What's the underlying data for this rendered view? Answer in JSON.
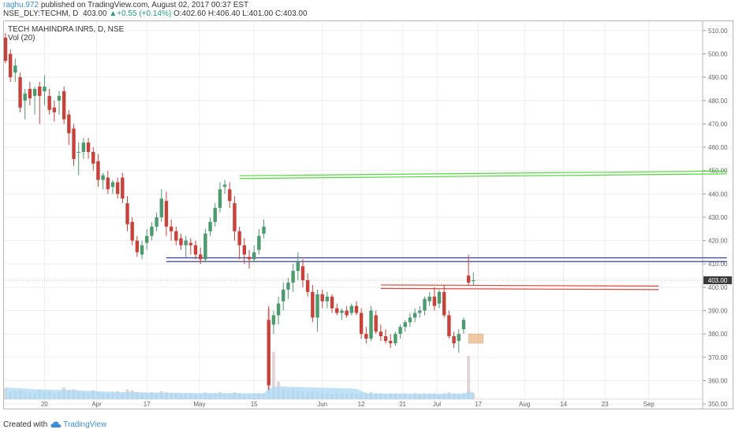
{
  "header": {
    "user": "raghu.972",
    "published": "published on TradingView.com, August 02, 2017 00:37 EST",
    "symbol": "NSE_DLY:TECHM, D",
    "price": "403.00",
    "change": "+0.55 (+0.14%)",
    "ohlc": "O:402.60 H:406.40 L:401.00 C:403.00"
  },
  "legend": {
    "title": "TECH MAHINDRA INR5, D, NSE",
    "vol": "Vol (20)"
  },
  "footer": {
    "created": "Created with",
    "brand": "TradingView",
    "logo_icon": "tradingview-cloud-icon"
  },
  "colors": {
    "up": "#4c9a6e",
    "down": "#c7423a",
    "green_line": "#4fdc3a",
    "blue_line": "#3440a0",
    "red_line": "#e04a3c",
    "volume_ma": "#a9d8f5",
    "volume_bar": "#d7c5c5",
    "last_price_bg": "#3b3b3b"
  },
  "chart_data": {
    "type": "candlestick",
    "ylim": [
      348,
      514
    ],
    "yticks": [
      "510.00",
      "500.00",
      "490.00",
      "480.00",
      "470.00",
      "460.00",
      "450.00",
      "440.00",
      "430.00",
      "420.00",
      "410.00",
      "400.00",
      "390.00",
      "380.00",
      "370.00",
      "360.00",
      "350.00"
    ],
    "xticks": [
      "20",
      "Apr",
      "17",
      "May",
      "15",
      "Jun",
      "12",
      "21",
      "Jul",
      "17",
      "Aug",
      "14",
      "23",
      "Sep"
    ],
    "last_price": "403.00",
    "candles": [
      {
        "o": 507,
        "h": 509,
        "l": 496,
        "c": 497
      },
      {
        "o": 500,
        "h": 502,
        "l": 488,
        "c": 490
      },
      {
        "o": 492,
        "h": 498,
        "l": 488,
        "c": 495
      },
      {
        "o": 490,
        "h": 492,
        "l": 475,
        "c": 477
      },
      {
        "o": 480,
        "h": 485,
        "l": 472,
        "c": 483
      },
      {
        "o": 485,
        "h": 488,
        "l": 478,
        "c": 481
      },
      {
        "o": 482,
        "h": 486,
        "l": 474,
        "c": 485
      },
      {
        "o": 486,
        "h": 488,
        "l": 470,
        "c": 482
      },
      {
        "o": 484,
        "h": 491,
        "l": 478,
        "c": 486
      },
      {
        "o": 482,
        "h": 485,
        "l": 474,
        "c": 476
      },
      {
        "o": 477,
        "h": 480,
        "l": 471,
        "c": 475
      },
      {
        "o": 480,
        "h": 484,
        "l": 474,
        "c": 482
      },
      {
        "o": 484,
        "h": 486,
        "l": 470,
        "c": 472
      },
      {
        "o": 474,
        "h": 476,
        "l": 461,
        "c": 466
      },
      {
        "o": 468,
        "h": 470,
        "l": 452,
        "c": 455
      },
      {
        "o": 458,
        "h": 462,
        "l": 448,
        "c": 458
      },
      {
        "o": 458,
        "h": 464,
        "l": 455,
        "c": 462
      },
      {
        "o": 462,
        "h": 464,
        "l": 455,
        "c": 458
      },
      {
        "o": 458,
        "h": 460,
        "l": 450,
        "c": 453
      },
      {
        "o": 454,
        "h": 457,
        "l": 443,
        "c": 446
      },
      {
        "o": 446,
        "h": 449,
        "l": 442,
        "c": 448
      },
      {
        "o": 447,
        "h": 450,
        "l": 440,
        "c": 442
      },
      {
        "o": 443,
        "h": 446,
        "l": 440,
        "c": 445
      },
      {
        "o": 445,
        "h": 447,
        "l": 438,
        "c": 440
      },
      {
        "o": 447,
        "h": 449,
        "l": 436,
        "c": 438
      },
      {
        "o": 436,
        "h": 439,
        "l": 424,
        "c": 427
      },
      {
        "o": 428,
        "h": 430,
        "l": 418,
        "c": 420
      },
      {
        "o": 420,
        "h": 422,
        "l": 413,
        "c": 415
      },
      {
        "o": 414,
        "h": 420,
        "l": 412,
        "c": 418
      },
      {
        "o": 419,
        "h": 425,
        "l": 416,
        "c": 422
      },
      {
        "o": 422,
        "h": 428,
        "l": 420,
        "c": 426
      },
      {
        "o": 426,
        "h": 432,
        "l": 424,
        "c": 430
      },
      {
        "o": 430,
        "h": 442,
        "l": 428,
        "c": 438
      },
      {
        "o": 437,
        "h": 441,
        "l": 422,
        "c": 426
      },
      {
        "o": 426,
        "h": 429,
        "l": 420,
        "c": 424
      },
      {
        "o": 424,
        "h": 426,
        "l": 418,
        "c": 420
      },
      {
        "o": 421,
        "h": 423,
        "l": 416,
        "c": 418
      },
      {
        "o": 418,
        "h": 422,
        "l": 413,
        "c": 420
      },
      {
        "o": 419,
        "h": 421,
        "l": 414,
        "c": 418
      },
      {
        "o": 418,
        "h": 420,
        "l": 412,
        "c": 414
      },
      {
        "o": 414,
        "h": 417,
        "l": 410,
        "c": 412
      },
      {
        "o": 412,
        "h": 425,
        "l": 411,
        "c": 423
      },
      {
        "o": 424,
        "h": 430,
        "l": 422,
        "c": 428
      },
      {
        "o": 428,
        "h": 436,
        "l": 426,
        "c": 434
      },
      {
        "o": 434,
        "h": 445,
        "l": 432,
        "c": 442
      },
      {
        "o": 443,
        "h": 446,
        "l": 440,
        "c": 444
      },
      {
        "o": 442,
        "h": 445,
        "l": 434,
        "c": 437
      },
      {
        "o": 436,
        "h": 439,
        "l": 420,
        "c": 424
      },
      {
        "o": 424,
        "h": 426,
        "l": 412,
        "c": 418
      },
      {
        "o": 418,
        "h": 421,
        "l": 410,
        "c": 414
      },
      {
        "o": 413,
        "h": 416,
        "l": 408,
        "c": 412
      },
      {
        "o": 412,
        "h": 418,
        "l": 411,
        "c": 415
      },
      {
        "o": 416,
        "h": 425,
        "l": 414,
        "c": 422
      },
      {
        "o": 423,
        "h": 429,
        "l": 421,
        "c": 426
      },
      {
        "o": 386,
        "h": 392,
        "l": 356,
        "c": 358
      },
      {
        "o": 384,
        "h": 390,
        "l": 380,
        "c": 388
      },
      {
        "o": 388,
        "h": 396,
        "l": 384,
        "c": 393
      },
      {
        "o": 394,
        "h": 402,
        "l": 390,
        "c": 399
      },
      {
        "o": 399,
        "h": 404,
        "l": 395,
        "c": 402
      },
      {
        "o": 402,
        "h": 410,
        "l": 398,
        "c": 407
      },
      {
        "o": 407,
        "h": 415,
        "l": 403,
        "c": 411
      },
      {
        "o": 409,
        "h": 412,
        "l": 400,
        "c": 403
      },
      {
        "o": 403,
        "h": 406,
        "l": 396,
        "c": 398
      },
      {
        "o": 398,
        "h": 401,
        "l": 385,
        "c": 387
      },
      {
        "o": 387,
        "h": 399,
        "l": 381,
        "c": 397
      },
      {
        "o": 397,
        "h": 399,
        "l": 391,
        "c": 394
      },
      {
        "o": 394,
        "h": 398,
        "l": 391,
        "c": 396
      },
      {
        "o": 396,
        "h": 397,
        "l": 389,
        "c": 391
      },
      {
        "o": 391,
        "h": 393,
        "l": 388,
        "c": 389
      },
      {
        "o": 389,
        "h": 391,
        "l": 386,
        "c": 390
      },
      {
        "o": 390,
        "h": 392,
        "l": 387,
        "c": 388
      },
      {
        "o": 389,
        "h": 393,
        "l": 388,
        "c": 392
      },
      {
        "o": 392,
        "h": 394,
        "l": 388,
        "c": 389
      },
      {
        "o": 389,
        "h": 391,
        "l": 378,
        "c": 380
      },
      {
        "o": 380,
        "h": 383,
        "l": 376,
        "c": 378
      },
      {
        "o": 378,
        "h": 392,
        "l": 377,
        "c": 390
      },
      {
        "o": 388,
        "h": 390,
        "l": 380,
        "c": 381
      },
      {
        "o": 381,
        "h": 384,
        "l": 377,
        "c": 379
      },
      {
        "o": 379,
        "h": 382,
        "l": 376,
        "c": 377
      },
      {
        "o": 377,
        "h": 380,
        "l": 374,
        "c": 376
      },
      {
        "o": 376,
        "h": 381,
        "l": 375,
        "c": 380
      },
      {
        "o": 380,
        "h": 384,
        "l": 378,
        "c": 383
      },
      {
        "o": 383,
        "h": 386,
        "l": 381,
        "c": 385
      },
      {
        "o": 385,
        "h": 389,
        "l": 383,
        "c": 387
      },
      {
        "o": 387,
        "h": 391,
        "l": 385,
        "c": 389
      },
      {
        "o": 389,
        "h": 392,
        "l": 387,
        "c": 390
      },
      {
        "o": 390,
        "h": 396,
        "l": 388,
        "c": 395
      },
      {
        "o": 394,
        "h": 398,
        "l": 392,
        "c": 396
      },
      {
        "o": 396,
        "h": 400,
        "l": 390,
        "c": 392
      },
      {
        "o": 393,
        "h": 399,
        "l": 391,
        "c": 398
      },
      {
        "o": 398,
        "h": 401,
        "l": 387,
        "c": 388
      },
      {
        "o": 388,
        "h": 390,
        "l": 378,
        "c": 379
      },
      {
        "o": 379,
        "h": 381,
        "l": 374,
        "c": 376
      },
      {
        "o": 377,
        "h": 382,
        "l": 372,
        "c": 380
      },
      {
        "o": 382,
        "h": 387,
        "l": 380,
        "c": 386
      },
      {
        "o": 405,
        "h": 414,
        "l": 401,
        "c": 402
      },
      {
        "o": 402.6,
        "h": 406.4,
        "l": 401,
        "c": 403
      }
    ],
    "volume": [
      0.55,
      0.35,
      0.4,
      0.45,
      0.3,
      0.35,
      0.3,
      0.5,
      0.35,
      0.4,
      0.3,
      0.35,
      0.6,
      0.45,
      0.5,
      0.4,
      0.35,
      0.3,
      0.45,
      0.35,
      0.3,
      0.3,
      0.35,
      0.4,
      0.3,
      0.5,
      0.45,
      0.35,
      0.3,
      0.3,
      0.35,
      0.3,
      0.4,
      0.35,
      0.3,
      0.3,
      0.25,
      0.3,
      0.3,
      0.25,
      0.3,
      0.35,
      0.3,
      0.3,
      0.35,
      0.3,
      0.3,
      0.35,
      0.3,
      0.25,
      0.25,
      0.3,
      0.3,
      0.25,
      4.6,
      2.4,
      0.9,
      0.5,
      0.45,
      0.5,
      0.4,
      0.4,
      0.35,
      0.4,
      0.35,
      0.3,
      0.3,
      0.25,
      0.3,
      0.25,
      0.25,
      0.3,
      0.25,
      0.3,
      0.3,
      0.35,
      0.3,
      0.3,
      0.25,
      0.3,
      0.3,
      0.25,
      0.3,
      0.25,
      0.3,
      0.25,
      0.3,
      0.3,
      0.3,
      0.25,
      0.3,
      0.35,
      0.3,
      0.25,
      0.3,
      2.2,
      0.3
    ],
    "vol_ma": [
      0.6,
      0.58,
      0.56,
      0.55,
      0.54,
      0.52,
      0.5,
      0.5,
      0.49,
      0.48,
      0.47,
      0.47,
      0.48,
      0.47,
      0.46,
      0.45,
      0.43,
      0.42,
      0.42,
      0.4,
      0.39,
      0.38,
      0.38,
      0.37,
      0.36,
      0.37,
      0.37,
      0.36,
      0.35,
      0.34,
      0.34,
      0.33,
      0.34,
      0.33,
      0.33,
      0.32,
      0.32,
      0.31,
      0.32,
      0.31,
      0.3,
      0.31,
      0.3,
      0.31,
      0.31,
      0.3,
      0.3,
      0.31,
      0.3,
      0.3,
      0.3,
      0.3,
      0.3,
      0.3,
      0.52,
      0.62,
      0.64,
      0.64,
      0.63,
      0.62,
      0.62,
      0.61,
      0.6,
      0.6,
      0.59,
      0.58,
      0.58,
      0.57,
      0.56,
      0.55,
      0.55,
      0.54,
      0.52,
      0.42,
      0.31,
      0.29,
      0.29,
      0.29,
      0.28,
      0.28,
      0.28,
      0.28,
      0.28,
      0.27,
      0.27,
      0.27,
      0.27,
      0.27,
      0.27,
      0.27,
      0.27,
      0.27,
      0.28,
      0.28,
      0.28,
      0.37,
      0.38
    ],
    "trendlines": [
      {
        "name": "resistance-green-upper",
        "color": "green",
        "x1": 48,
        "y1": 447.8,
        "x2": 148,
        "y2": 449.8
      },
      {
        "name": "resistance-green-lower",
        "color": "green",
        "x1": 48,
        "y1": 446.6,
        "x2": 148,
        "y2": 448.6
      },
      {
        "name": "support-blue-upper",
        "color": "blue",
        "x1": 33,
        "y1": 412.6,
        "x2": 148,
        "y2": 412.6
      },
      {
        "name": "support-blue-lower",
        "color": "blue",
        "x1": 33,
        "y1": 411.0,
        "x2": 148,
        "y2": 411.0
      },
      {
        "name": "resistance-red-upper",
        "color": "red",
        "x1": 77,
        "y1": 401.0,
        "x2": 134,
        "y2": 400.5
      },
      {
        "name": "resistance-red-lower",
        "color": "red",
        "x1": 77,
        "y1": 399.5,
        "x2": 134,
        "y2": 399.0
      }
    ],
    "box": {
      "x1": 95,
      "x2": 98,
      "y1": 376,
      "y2": 380
    }
  }
}
